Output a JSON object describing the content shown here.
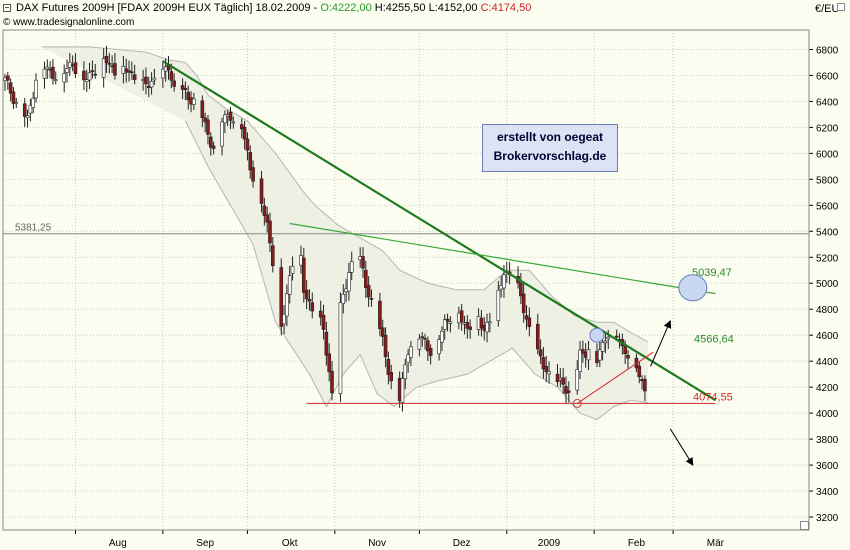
{
  "header": {
    "instrument": "DAX Futures 2009H [FDAX 2009H EUX  Täglich]",
    "date": "18.02.2009",
    "open": "O:4222,00",
    "high": "H:4255,50",
    "low": "L:4152,00",
    "close": "C:4174,50",
    "copyright": "© www.tradesignalonline.com",
    "unit": "€/EU"
  },
  "signature": {
    "line1": "erstellt von oegeat",
    "line2": "Brokervorschlag.de"
  },
  "colors": {
    "background": "#fbfdf0",
    "grid": "#c8ccc4",
    "candle_up": "#ffffff",
    "candle_down": "#8b1a1a",
    "trend_main": "#1f7a1f",
    "trend_upper": "#3aa63a",
    "support": "#d42a2a",
    "bollinger_band": "#b5b5b5",
    "signature_box": "#dde3f4"
  },
  "chart_data": {
    "type": "candlestick",
    "title": "DAX Futures 2009H [FDAX 2009H EUX  Täglich]",
    "ylim": [
      3100,
      6950
    ],
    "y_ticks": [
      3200,
      3400,
      3600,
      3800,
      4000,
      4200,
      4400,
      4600,
      4800,
      5000,
      5200,
      5400,
      5600,
      5800,
      6000,
      6200,
      6400,
      6600,
      6800
    ],
    "x_range_days": [
      0,
      243
    ],
    "month_labels": [
      {
        "label": "Aug",
        "day": 40
      },
      {
        "label": "Sep",
        "day": 71
      },
      {
        "label": "Okt",
        "day": 101
      },
      {
        "label": "Nov",
        "day": 132
      },
      {
        "label": "Dez",
        "day": 162
      },
      {
        "label": "2009",
        "day": 193
      },
      {
        "label": "Feb",
        "day": 224
      },
      {
        "label": "Mär",
        "day": 252
      }
    ],
    "grid": true,
    "price_path": [
      [
        0,
        6560
      ],
      [
        5,
        6350
      ],
      [
        8,
        6250
      ],
      [
        12,
        6700
      ],
      [
        16,
        6620
      ],
      [
        20,
        6600
      ],
      [
        24,
        6700
      ],
      [
        28,
        6560
      ],
      [
        32,
        6650
      ],
      [
        36,
        6720
      ],
      [
        40,
        6600
      ],
      [
        44,
        6650
      ],
      [
        48,
        6500
      ],
      [
        52,
        6560
      ],
      [
        56,
        6600
      ],
      [
        58,
        6680
      ],
      [
        60,
        6500
      ],
      [
        64,
        6450
      ],
      [
        68,
        6400
      ],
      [
        71,
        6200
      ],
      [
        74,
        6050
      ],
      [
        77,
        6250
      ],
      [
        80,
        6300
      ],
      [
        84,
        6200
      ],
      [
        87,
        5900
      ],
      [
        90,
        5700
      ],
      [
        93,
        5450
      ],
      [
        96,
        5050
      ],
      [
        98,
        4650
      ],
      [
        101,
        5050
      ],
      [
        104,
        5400
      ],
      [
        106,
        4950
      ],
      [
        109,
        4800
      ],
      [
        113,
        4650
      ],
      [
        116,
        4150
      ],
      [
        119,
        4800
      ],
      [
        122,
        5100
      ],
      [
        125,
        5250
      ],
      [
        128,
        5000
      ],
      [
        131,
        4800
      ],
      [
        134,
        4550
      ],
      [
        137,
        4250
      ],
      [
        140,
        4100
      ],
      [
        143,
        4500
      ],
      [
        146,
        4600
      ],
      [
        149,
        4550
      ],
      [
        152,
        4450
      ],
      [
        156,
        4700
      ],
      [
        160,
        4800
      ],
      [
        164,
        4650
      ],
      [
        167,
        4750
      ],
      [
        170,
        4650
      ],
      [
        174,
        4800
      ],
      [
        177,
        5100
      ],
      [
        180,
        5050
      ],
      [
        183,
        4900
      ],
      [
        186,
        4650
      ],
      [
        189,
        4450
      ],
      [
        192,
        4350
      ],
      [
        195,
        4200
      ],
      [
        198,
        4250
      ],
      [
        201,
        4100
      ],
      [
        204,
        4450
      ],
      [
        207,
        4500
      ],
      [
        210,
        4400
      ],
      [
        213,
        4600
      ],
      [
        216,
        4650
      ],
      [
        219,
        4500
      ],
      [
        222,
        4450
      ],
      [
        225,
        4300
      ],
      [
        227,
        4175
      ]
    ],
    "bollinger": {
      "upper": [
        [
          13,
          6820
        ],
        [
          30,
          6820
        ],
        [
          50,
          6780
        ],
        [
          58,
          6720
        ],
        [
          64,
          6700
        ],
        [
          68,
          6600
        ],
        [
          72,
          6450
        ],
        [
          78,
          6350
        ],
        [
          86,
          6250
        ],
        [
          96,
          6000
        ],
        [
          106,
          5700
        ],
        [
          110,
          5600
        ],
        [
          118,
          5450
        ],
        [
          126,
          5350
        ],
        [
          134,
          5250
        ],
        [
          140,
          5100
        ],
        [
          150,
          5000
        ],
        [
          160,
          4950
        ],
        [
          170,
          4950
        ],
        [
          178,
          5100
        ],
        [
          186,
          5100
        ],
        [
          194,
          4900
        ],
        [
          202,
          4750
        ],
        [
          210,
          4700
        ],
        [
          216,
          4700
        ],
        [
          222,
          4620
        ],
        [
          228,
          4550
        ]
      ],
      "lower": [
        [
          64,
          6250
        ],
        [
          72,
          5900
        ],
        [
          80,
          5600
        ],
        [
          88,
          5300
        ],
        [
          96,
          4700
        ],
        [
          102,
          4500
        ],
        [
          108,
          4300
        ],
        [
          114,
          4050
        ],
        [
          120,
          4300
        ],
        [
          126,
          4450
        ],
        [
          132,
          4150
        ],
        [
          138,
          4050
        ],
        [
          146,
          4200
        ],
        [
          154,
          4250
        ],
        [
          164,
          4300
        ],
        [
          172,
          4400
        ],
        [
          180,
          4500
        ],
        [
          188,
          4300
        ],
        [
          196,
          4200
        ],
        [
          204,
          4000
        ],
        [
          210,
          3950
        ],
        [
          216,
          4050
        ],
        [
          222,
          4100
        ],
        [
          228,
          4080
        ]
      ]
    },
    "annotations": {
      "horizontal_level": {
        "value": 5381.25,
        "label": "5381,25"
      },
      "main_trendline": {
        "from": [
          56,
          6710
        ],
        "to": [
          252,
          4100
        ]
      },
      "upper_trendline": {
        "from": [
          101,
          5460
        ],
        "to": [
          252,
          4920
        ],
        "label": "5039,47",
        "label_value": 5039.47
      },
      "support_line": {
        "from": [
          107,
          4074.55
        ],
        "to": [
          252,
          4074.55
        ],
        "label": "4074,55",
        "label_value": 4074.55
      },
      "rising_line": {
        "from": [
          203,
          4074.55
        ],
        "to": [
          230,
          4470
        ]
      },
      "target_label": {
        "label": "4566,64",
        "value": 4566.64
      },
      "circles": [
        {
          "day": 203,
          "value": 4074.55,
          "size": "small"
        },
        {
          "day": 210,
          "value": 4600,
          "size": "medium"
        },
        {
          "day": 244,
          "value": 4965,
          "size": "large"
        }
      ],
      "arrows": [
        {
          "from": [
            229,
            4360
          ],
          "to": [
            236,
            4710
          ]
        },
        {
          "from": [
            236,
            3880
          ],
          "to": [
            244,
            3600
          ]
        }
      ]
    }
  }
}
